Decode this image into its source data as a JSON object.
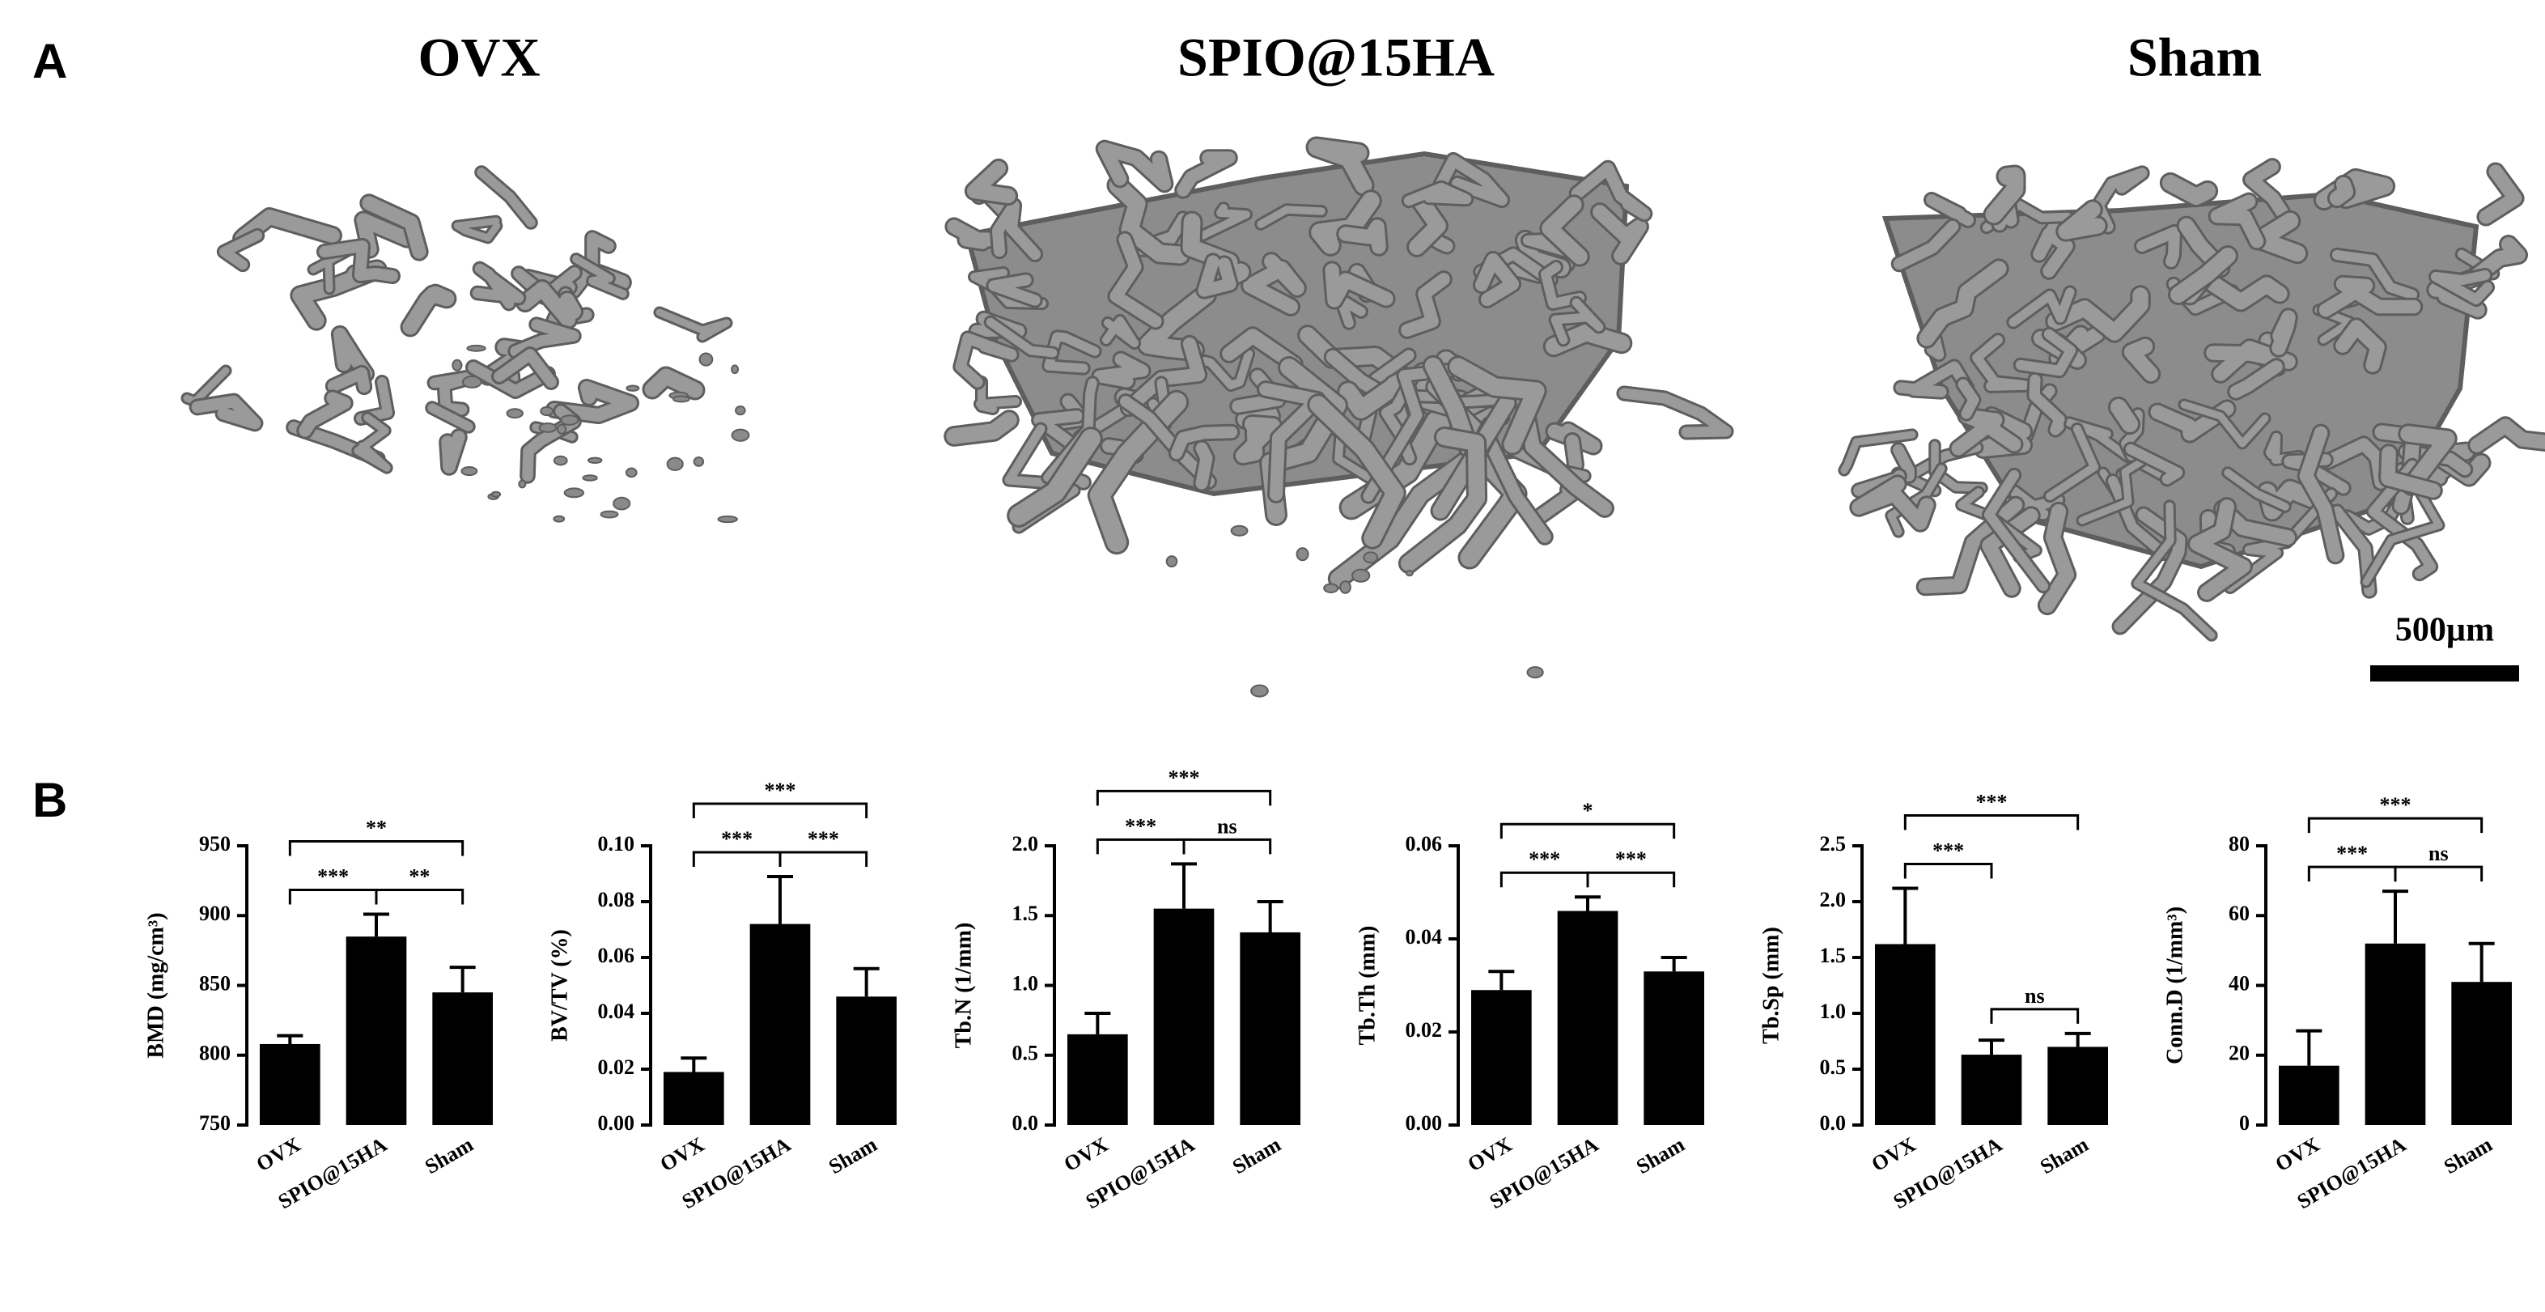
{
  "panel_a": {
    "label": "A",
    "titles": [
      "OVX",
      "SPIO@15HA",
      "Sham"
    ],
    "scale_bar": "500µm"
  },
  "panel_b": {
    "label": "B"
  },
  "chart_data": [
    {
      "type": "bar",
      "y_label": "BMD (mg/cm³)",
      "categories": [
        "OVX",
        "SPIO@15HA",
        "Sham"
      ],
      "values": [
        808,
        885,
        845
      ],
      "errors": [
        6,
        16,
        18
      ],
      "color": "#000000",
      "ylim": [
        750,
        950
      ],
      "yticks": [
        750,
        800,
        850,
        900,
        950
      ],
      "significance": [
        "***",
        "**",
        "**"
      ]
    },
    {
      "type": "bar",
      "y_label": "BV/TV (%)",
      "categories": [
        "OVX",
        "SPIO@15HA",
        "Sham"
      ],
      "values": [
        0.019,
        0.072,
        0.046
      ],
      "errors": [
        0.005,
        0.017,
        0.01
      ],
      "color": "#000000",
      "ylim": [
        0,
        0.1
      ],
      "yticks": [
        {
          "value": 0,
          "label": "0.00"
        },
        0.02,
        0.04,
        0.06,
        0.08,
        {
          "value": 0.1,
          "label": "0.10"
        }
      ],
      "significance": [
        "***",
        "***",
        "***"
      ]
    },
    {
      "type": "bar",
      "y_label": "Tb.N (1/mm)",
      "categories": [
        "OVX",
        "SPIO@15HA",
        "Sham"
      ],
      "values": [
        0.65,
        1.55,
        1.38
      ],
      "errors": [
        0.15,
        0.32,
        0.22
      ],
      "color": "#000000",
      "ylim": [
        0,
        2
      ],
      "yticks": [
        {
          "value": 0,
          "label": "0.0"
        },
        0.5,
        {
          "value": 1,
          "label": "1.0"
        },
        1.5,
        {
          "value": 2,
          "label": "2.0"
        }
      ],
      "significance": [
        "***",
        "ns",
        "***"
      ]
    },
    {
      "type": "bar",
      "y_label": "Tb.Th (mm)",
      "categories": [
        "OVX",
        "SPIO@15HA",
        "Sham"
      ],
      "values": [
        0.029,
        0.046,
        0.033
      ],
      "errors": [
        0.004,
        0.003,
        0.003
      ],
      "color": "#000000",
      "ylim": [
        0,
        0.06
      ],
      "yticks": [
        {
          "value": 0,
          "label": "0.00"
        },
        0.02,
        0.04,
        0.06
      ],
      "significance": [
        "***",
        "***",
        "*"
      ]
    },
    {
      "type": "bar",
      "y_label": "Tb.Sp (mm)",
      "categories": [
        "OVX",
        "SPIO@15HA",
        "Sham"
      ],
      "values": [
        1.62,
        0.63,
        0.7
      ],
      "errors": [
        0.5,
        0.13,
        0.12
      ],
      "color": "#000000",
      "ylim": [
        0,
        2.5
      ],
      "yticks": [
        {
          "value": 0,
          "label": "0.0"
        },
        0.5,
        {
          "value": 1,
          "label": "1.0"
        },
        1.5,
        {
          "value": 2,
          "label": "2.0"
        },
        2.5
      ],
      "significance": [
        "***",
        "ns",
        "***"
      ]
    },
    {
      "type": "bar",
      "y_label": "Conn.D (1/mm³)",
      "categories": [
        "OVX",
        "SPIO@15HA",
        "Sham"
      ],
      "values": [
        17,
        52,
        41
      ],
      "errors": [
        10,
        15,
        11
      ],
      "color": "#000000",
      "ylim": [
        0,
        80
      ],
      "yticks": [
        0,
        20,
        40,
        60,
        80
      ],
      "significance": [
        "***",
        "ns",
        "***"
      ]
    }
  ]
}
